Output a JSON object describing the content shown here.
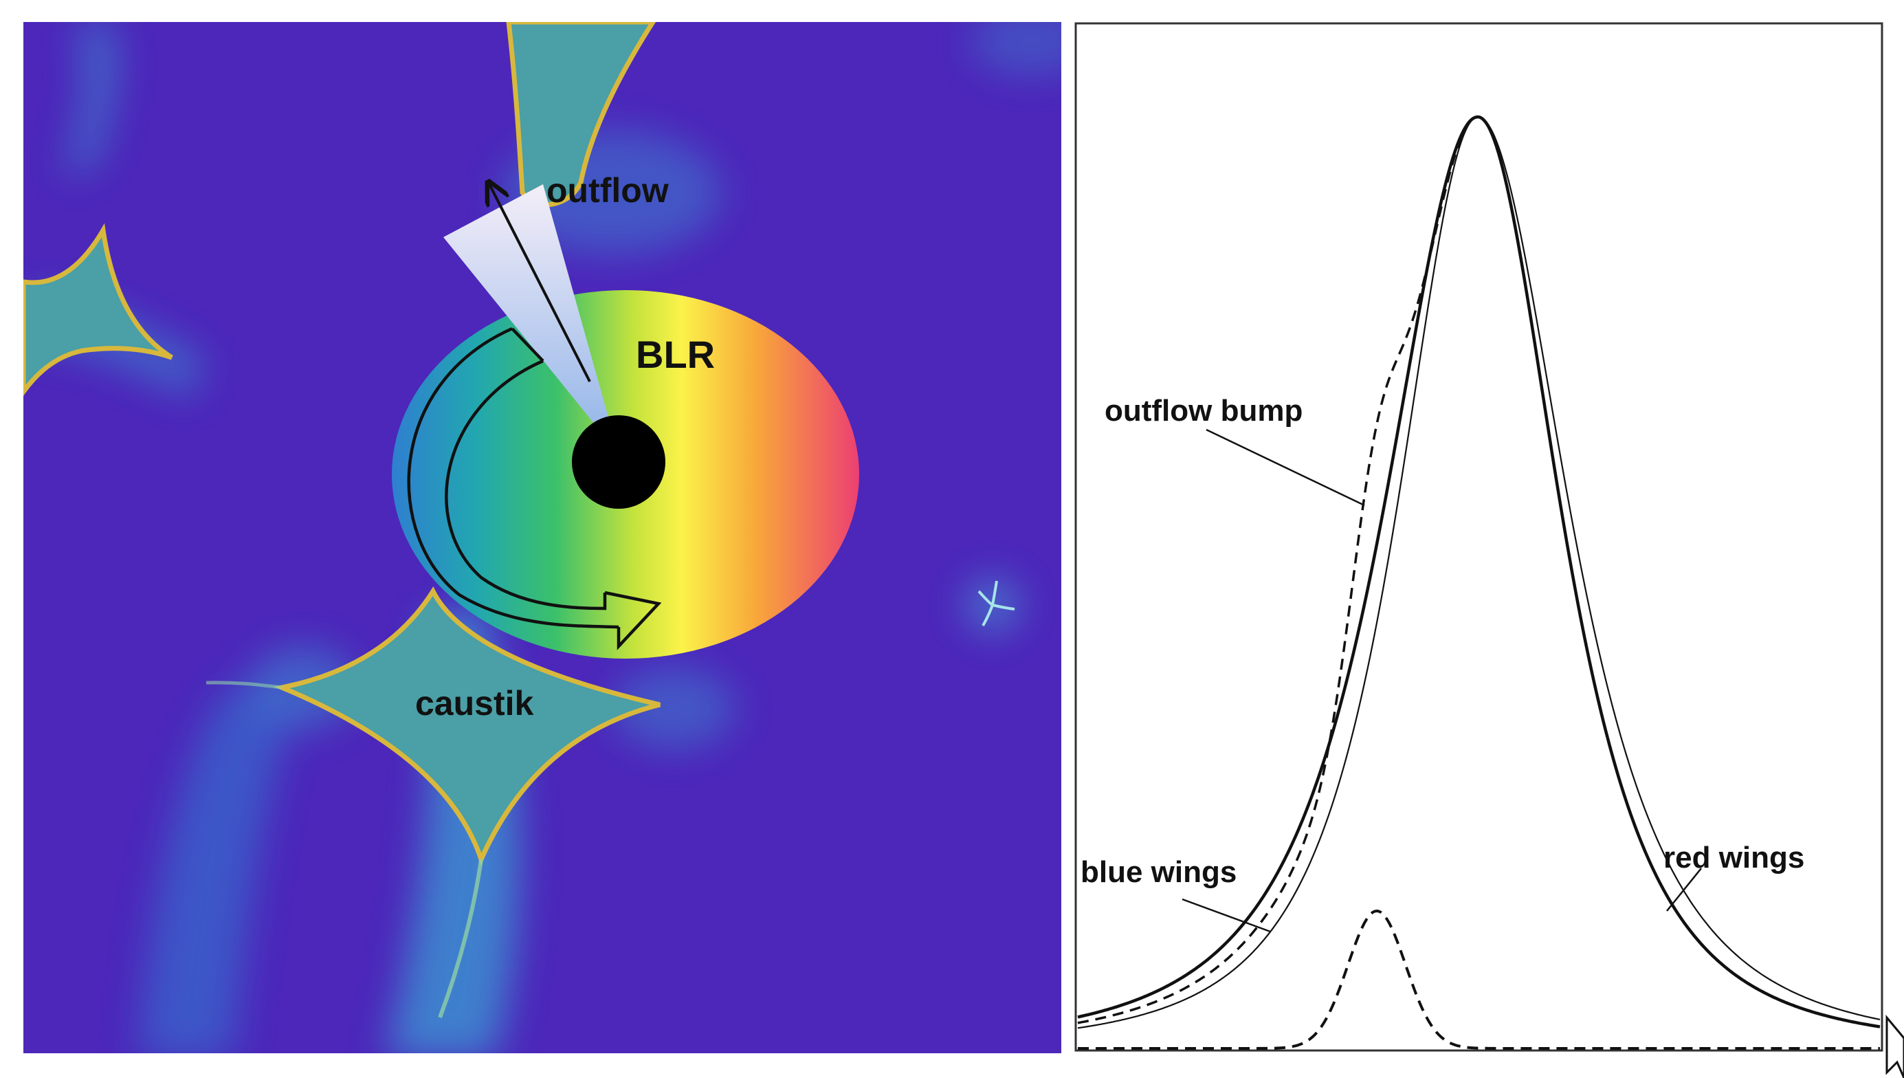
{
  "left_panel": {
    "labels": {
      "outflow": "outflow",
      "blr": "BLR",
      "caustic": "caustik"
    },
    "colors": {
      "background": "#4a22b6",
      "caustic_fill": "#4b9fa6",
      "caustic_edge": "#d8b83c",
      "black_hole": "#000000",
      "cone_top": "#f4eef8",
      "cone_bottom": "#8fb3e8"
    }
  },
  "right_panel": {
    "labels": {
      "outflow_bump": "outflow bump",
      "blue_wings": "blue wings",
      "red_wings": "red wings"
    },
    "colors": {
      "line": "#111111",
      "frame": "#333333"
    }
  }
}
